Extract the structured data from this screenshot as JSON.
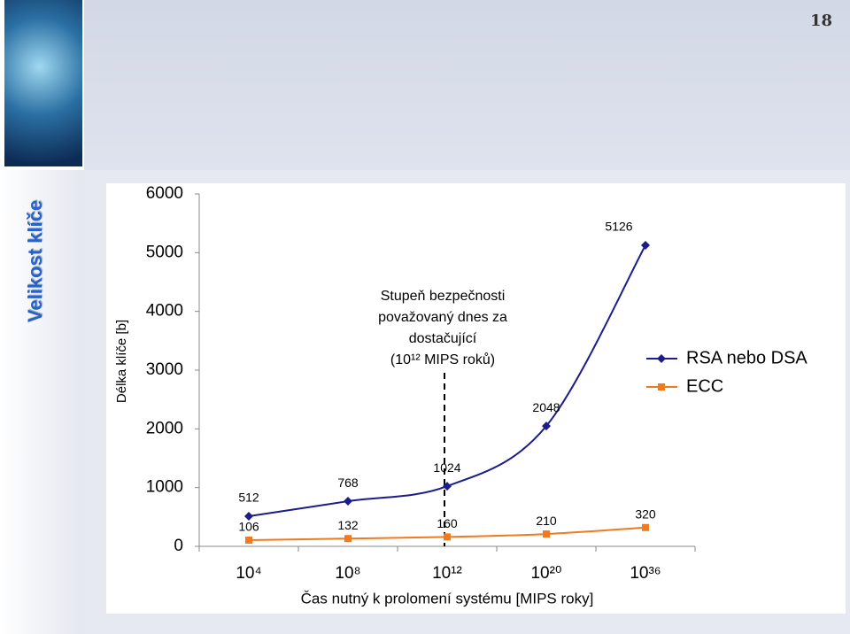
{
  "slide": {
    "title": "Velikost klíče",
    "page_number": "18"
  },
  "chart_data": {
    "type": "line",
    "categories": [
      "10⁴",
      "10⁸",
      "10¹²",
      "10²⁰",
      "10³⁶"
    ],
    "series": [
      {
        "name": "RSA nebo DSA",
        "color": "#1c1c8a",
        "marker": "diamond",
        "values": [
          512,
          768,
          1024,
          2048,
          5126
        ]
      },
      {
        "name": "ECC",
        "color": "#f07a1e",
        "marker": "square",
        "values": [
          106,
          132,
          160,
          210,
          320
        ]
      }
    ],
    "ylim": [
      0,
      6000
    ],
    "yticks": [
      0,
      1000,
      2000,
      3000,
      4000,
      5000,
      6000
    ],
    "x_label": "Čas nutný k prolomení systému  [MIPS roky]",
    "y_label": "Délka klíče  [b]",
    "annotation": [
      "Stupeň bezpečnosti",
      "považovaný dnes za",
      "dostačující",
      "(10¹² MIPS roků)"
    ],
    "legend": "right"
  }
}
